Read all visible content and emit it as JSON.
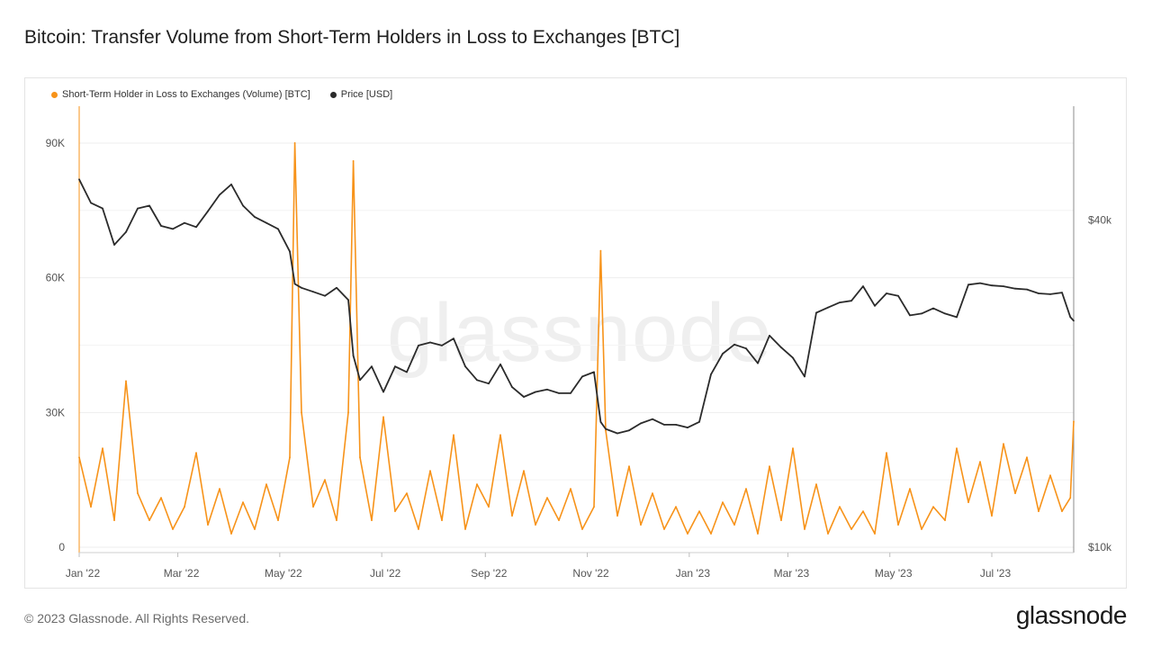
{
  "header": {
    "title": "Bitcoin: Transfer Volume from Short-Term Holders in Loss to Exchanges [BTC]"
  },
  "footer": {
    "copyright": "© 2023 Glassnode. All Rights Reserved.",
    "logo_text": "glassnode"
  },
  "watermark": "glassnode",
  "chart_data": {
    "type": "line",
    "title": "Bitcoin: Transfer Volume from Short-Term Holders in Loss to Exchanges [BTC]",
    "xlabel": "",
    "ylabel": "",
    "grid": true,
    "legend_position": "top-left",
    "x_ticks": [
      "Jan '22",
      "Mar '22",
      "May '22",
      "Jul '22",
      "Sep '22",
      "Nov '22",
      "Jan '23",
      "Mar '23",
      "May '23",
      "Jul '23"
    ],
    "y_left": {
      "ticks": [
        "0",
        "30K",
        "60K",
        "90K"
      ],
      "range": [
        0,
        95000
      ]
    },
    "y_right": {
      "ticks": [
        "$10k",
        "$40k"
      ],
      "scale": "log",
      "range": [
        10000,
        60000
      ]
    },
    "colors": {
      "volume": "#f7931a",
      "price": "#2b2b2b"
    },
    "series": [
      {
        "name": "Short-Term Holder in Loss to Exchanges (Volume) [BTC]",
        "axis": "left",
        "color": "#f7931a",
        "x": [
          "2022-01-01",
          "2022-01-08",
          "2022-01-15",
          "2022-01-22",
          "2022-01-29",
          "2022-02-05",
          "2022-02-12",
          "2022-02-19",
          "2022-02-26",
          "2022-03-05",
          "2022-03-12",
          "2022-03-19",
          "2022-03-26",
          "2022-04-02",
          "2022-04-09",
          "2022-04-16",
          "2022-04-23",
          "2022-04-30",
          "2022-05-07",
          "2022-05-10",
          "2022-05-14",
          "2022-05-21",
          "2022-05-28",
          "2022-06-04",
          "2022-06-11",
          "2022-06-14",
          "2022-06-18",
          "2022-06-25",
          "2022-07-02",
          "2022-07-09",
          "2022-07-16",
          "2022-07-23",
          "2022-07-30",
          "2022-08-06",
          "2022-08-13",
          "2022-08-20",
          "2022-08-27",
          "2022-09-03",
          "2022-09-10",
          "2022-09-17",
          "2022-09-24",
          "2022-10-01",
          "2022-10-08",
          "2022-10-15",
          "2022-10-22",
          "2022-10-29",
          "2022-11-05",
          "2022-11-09",
          "2022-11-12",
          "2022-11-19",
          "2022-11-26",
          "2022-12-03",
          "2022-12-10",
          "2022-12-17",
          "2022-12-24",
          "2022-12-31",
          "2023-01-07",
          "2023-01-14",
          "2023-01-21",
          "2023-01-28",
          "2023-02-04",
          "2023-02-11",
          "2023-02-18",
          "2023-02-25",
          "2023-03-04",
          "2023-03-11",
          "2023-03-18",
          "2023-03-25",
          "2023-04-01",
          "2023-04-08",
          "2023-04-15",
          "2023-04-22",
          "2023-04-29",
          "2023-05-06",
          "2023-05-13",
          "2023-05-20",
          "2023-05-27",
          "2023-06-03",
          "2023-06-10",
          "2023-06-17",
          "2023-06-24",
          "2023-07-01",
          "2023-07-08",
          "2023-07-15",
          "2023-07-22",
          "2023-07-29",
          "2023-08-05",
          "2023-08-12",
          "2023-08-17",
          "2023-08-19"
        ],
        "values": [
          20000,
          9000,
          22000,
          6000,
          37000,
          12000,
          6000,
          11000,
          4000,
          9000,
          21000,
          5000,
          13000,
          3000,
          10000,
          4000,
          14000,
          6000,
          20000,
          90000,
          30000,
          9000,
          15000,
          6000,
          30000,
          86000,
          20000,
          6000,
          29000,
          8000,
          12000,
          4000,
          17000,
          6000,
          25000,
          4000,
          14000,
          9000,
          25000,
          7000,
          17000,
          5000,
          11000,
          6000,
          13000,
          4000,
          9000,
          66000,
          26000,
          7000,
          18000,
          5000,
          12000,
          4000,
          9000,
          3000,
          8000,
          3000,
          10000,
          5000,
          13000,
          3000,
          18000,
          6000,
          22000,
          4000,
          14000,
          3000,
          9000,
          4000,
          8000,
          3000,
          21000,
          5000,
          13000,
          4000,
          9000,
          6000,
          22000,
          10000,
          19000,
          7000,
          23000,
          12000,
          20000,
          8000,
          16000,
          8000,
          11000,
          28000
        ]
      },
      {
        "name": "Price [USD]",
        "axis": "right",
        "color": "#2b2b2b",
        "x": [
          "2022-01-01",
          "2022-01-08",
          "2022-01-15",
          "2022-01-22",
          "2022-01-29",
          "2022-02-05",
          "2022-02-12",
          "2022-02-19",
          "2022-02-26",
          "2022-03-05",
          "2022-03-12",
          "2022-03-19",
          "2022-03-26",
          "2022-04-02",
          "2022-04-09",
          "2022-04-16",
          "2022-04-23",
          "2022-04-30",
          "2022-05-07",
          "2022-05-10",
          "2022-05-14",
          "2022-05-21",
          "2022-05-28",
          "2022-06-04",
          "2022-06-11",
          "2022-06-14",
          "2022-06-18",
          "2022-06-25",
          "2022-07-02",
          "2022-07-09",
          "2022-07-16",
          "2022-07-23",
          "2022-07-30",
          "2022-08-06",
          "2022-08-13",
          "2022-08-20",
          "2022-08-27",
          "2022-09-03",
          "2022-09-10",
          "2022-09-17",
          "2022-09-24",
          "2022-10-01",
          "2022-10-08",
          "2022-10-15",
          "2022-10-22",
          "2022-10-29",
          "2022-11-05",
          "2022-11-09",
          "2022-11-12",
          "2022-11-19",
          "2022-11-26",
          "2022-12-03",
          "2022-12-10",
          "2022-12-17",
          "2022-12-24",
          "2022-12-31",
          "2023-01-07",
          "2023-01-14",
          "2023-01-21",
          "2023-01-28",
          "2023-02-04",
          "2023-02-11",
          "2023-02-18",
          "2023-02-25",
          "2023-03-04",
          "2023-03-11",
          "2023-03-18",
          "2023-03-25",
          "2023-04-01",
          "2023-04-08",
          "2023-04-15",
          "2023-04-22",
          "2023-04-29",
          "2023-05-06",
          "2023-05-13",
          "2023-05-20",
          "2023-05-27",
          "2023-06-03",
          "2023-06-10",
          "2023-06-17",
          "2023-06-24",
          "2023-07-01",
          "2023-07-08",
          "2023-07-15",
          "2023-07-22",
          "2023-07-29",
          "2023-08-05",
          "2023-08-12",
          "2023-08-17",
          "2023-08-19"
        ],
        "values": [
          47500,
          43000,
          42000,
          36000,
          38000,
          42000,
          42500,
          39000,
          38500,
          39500,
          38800,
          41500,
          44500,
          46500,
          42500,
          40500,
          39500,
          38500,
          35000,
          30500,
          30000,
          29500,
          29000,
          30000,
          28500,
          22500,
          20300,
          21500,
          19300,
          21500,
          21000,
          23500,
          23800,
          23500,
          24200,
          21500,
          20300,
          20000,
          21700,
          19700,
          18900,
          19300,
          19500,
          19200,
          19200,
          20600,
          21000,
          17000,
          16500,
          16200,
          16400,
          16900,
          17200,
          16800,
          16800,
          16600,
          17000,
          20800,
          22700,
          23600,
          23200,
          21800,
          24500,
          23300,
          22300,
          20600,
          27000,
          27600,
          28200,
          28400,
          30200,
          27800,
          29300,
          29000,
          26700,
          26900,
          27500,
          26900,
          26500,
          30400,
          30600,
          30300,
          30200,
          29900,
          29800,
          29300,
          29200,
          29400,
          26500,
          26100
        ]
      }
    ]
  }
}
